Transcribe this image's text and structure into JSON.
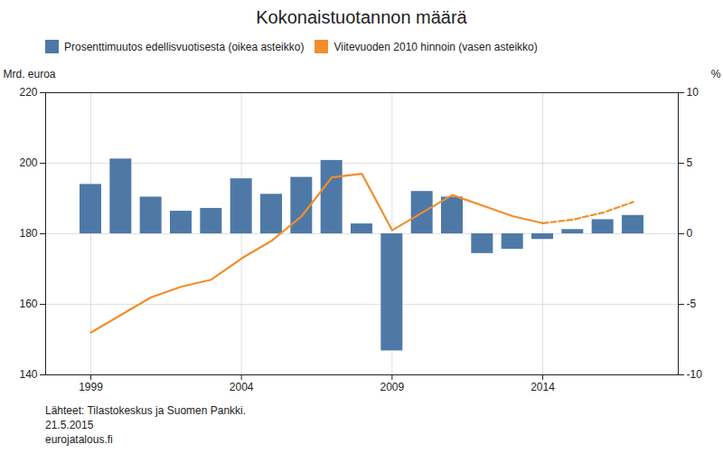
{
  "chart_data": {
    "type": "bar",
    "title": "Kokonaistuotannon  määrä",
    "x": [
      1999,
      2000,
      2001,
      2002,
      2003,
      2004,
      2005,
      2006,
      2007,
      2008,
      2009,
      2010,
      2011,
      2012,
      2013,
      2014,
      2015,
      2016,
      2017
    ],
    "xlim": [
      1997.5,
      2018.5
    ],
    "xticks": [
      1999,
      2004,
      2009,
      2014
    ],
    "ylabel": "Mrd. euroa",
    "ylim": [
      140,
      220
    ],
    "yticks": [
      140,
      160,
      180,
      200,
      220
    ],
    "y2label": "%",
    "y2lim": [
      -10,
      10
    ],
    "y2ticks": [
      -10,
      -5,
      0,
      5,
      10
    ],
    "series": [
      {
        "name": "Prosenttimuutos edellisvuotisesta (oikea asteikko)",
        "type": "bar",
        "axis": "y2",
        "values": [
          3.5,
          5.3,
          2.6,
          1.6,
          1.8,
          3.9,
          2.8,
          4.0,
          5.2,
          0.7,
          -8.3,
          3.0,
          2.6,
          -1.4,
          -1.1,
          -0.4,
          0.3,
          1.0,
          1.3
        ]
      },
      {
        "name": "Viitevuoden 2010 hinnoin (vasen asteikko)",
        "type": "line",
        "line_style": "solid",
        "values": [
          152,
          157,
          162,
          165,
          167,
          173,
          178,
          185,
          196,
          197,
          181,
          186,
          191,
          188,
          185,
          183,
          null,
          null,
          null
        ]
      },
      {
        "name": "Viitevuoden 2010 hinnoin (vasen asteikko)",
        "type": "line",
        "line_style": "dashed",
        "values": [
          null,
          null,
          null,
          null,
          null,
          null,
          null,
          null,
          null,
          null,
          null,
          null,
          null,
          null,
          null,
          183,
          184,
          186,
          189
        ]
      }
    ],
    "grid": true,
    "legend": "upper left",
    "annotations": [
      "Lähteet: Tilastokeskus ja Suomen Pankki.",
      "21.5.2015",
      "eurojatalous.fi"
    ]
  }
}
